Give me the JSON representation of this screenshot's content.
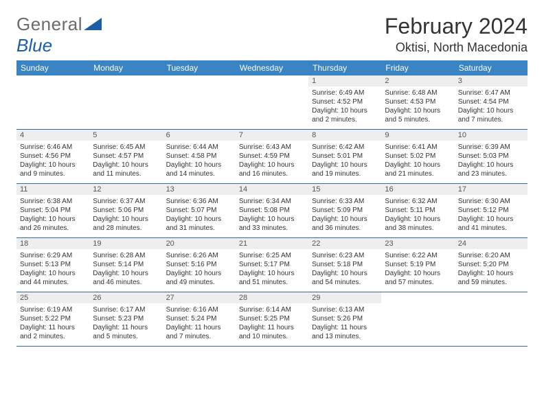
{
  "brand": {
    "name": "General",
    "accent": "Blue"
  },
  "title": "February 2024",
  "location": "Oktisi, North Macedonia",
  "style": {
    "header_bg": "#3a84c4",
    "header_fg": "#ffffff",
    "row_border": "#2f6aa0",
    "daynum_bg": "#eeeeee",
    "daynum_fg": "#555555",
    "body_fg": "#333333",
    "page_bg": "#ffffff",
    "logo_gray": "#6b6b6b",
    "logo_blue": "#1a5ea8",
    "title_fontsize": 32,
    "location_fontsize": 18,
    "header_fontsize": 12,
    "daynum_fontsize": 11,
    "cell_fontsize": 10
  },
  "weekdays": [
    "Sunday",
    "Monday",
    "Tuesday",
    "Wednesday",
    "Thursday",
    "Friday",
    "Saturday"
  ],
  "weeks": [
    [
      null,
      null,
      null,
      null,
      {
        "n": "1",
        "sr": "Sunrise: 6:49 AM",
        "ss": "Sunset: 4:52 PM",
        "dl": "Daylight: 10 hours and 2 minutes."
      },
      {
        "n": "2",
        "sr": "Sunrise: 6:48 AM",
        "ss": "Sunset: 4:53 PM",
        "dl": "Daylight: 10 hours and 5 minutes."
      },
      {
        "n": "3",
        "sr": "Sunrise: 6:47 AM",
        "ss": "Sunset: 4:54 PM",
        "dl": "Daylight: 10 hours and 7 minutes."
      }
    ],
    [
      {
        "n": "4",
        "sr": "Sunrise: 6:46 AM",
        "ss": "Sunset: 4:56 PM",
        "dl": "Daylight: 10 hours and 9 minutes."
      },
      {
        "n": "5",
        "sr": "Sunrise: 6:45 AM",
        "ss": "Sunset: 4:57 PM",
        "dl": "Daylight: 10 hours and 11 minutes."
      },
      {
        "n": "6",
        "sr": "Sunrise: 6:44 AM",
        "ss": "Sunset: 4:58 PM",
        "dl": "Daylight: 10 hours and 14 minutes."
      },
      {
        "n": "7",
        "sr": "Sunrise: 6:43 AM",
        "ss": "Sunset: 4:59 PM",
        "dl": "Daylight: 10 hours and 16 minutes."
      },
      {
        "n": "8",
        "sr": "Sunrise: 6:42 AM",
        "ss": "Sunset: 5:01 PM",
        "dl": "Daylight: 10 hours and 19 minutes."
      },
      {
        "n": "9",
        "sr": "Sunrise: 6:41 AM",
        "ss": "Sunset: 5:02 PM",
        "dl": "Daylight: 10 hours and 21 minutes."
      },
      {
        "n": "10",
        "sr": "Sunrise: 6:39 AM",
        "ss": "Sunset: 5:03 PM",
        "dl": "Daylight: 10 hours and 23 minutes."
      }
    ],
    [
      {
        "n": "11",
        "sr": "Sunrise: 6:38 AM",
        "ss": "Sunset: 5:04 PM",
        "dl": "Daylight: 10 hours and 26 minutes."
      },
      {
        "n": "12",
        "sr": "Sunrise: 6:37 AM",
        "ss": "Sunset: 5:06 PM",
        "dl": "Daylight: 10 hours and 28 minutes."
      },
      {
        "n": "13",
        "sr": "Sunrise: 6:36 AM",
        "ss": "Sunset: 5:07 PM",
        "dl": "Daylight: 10 hours and 31 minutes."
      },
      {
        "n": "14",
        "sr": "Sunrise: 6:34 AM",
        "ss": "Sunset: 5:08 PM",
        "dl": "Daylight: 10 hours and 33 minutes."
      },
      {
        "n": "15",
        "sr": "Sunrise: 6:33 AM",
        "ss": "Sunset: 5:09 PM",
        "dl": "Daylight: 10 hours and 36 minutes."
      },
      {
        "n": "16",
        "sr": "Sunrise: 6:32 AM",
        "ss": "Sunset: 5:11 PM",
        "dl": "Daylight: 10 hours and 38 minutes."
      },
      {
        "n": "17",
        "sr": "Sunrise: 6:30 AM",
        "ss": "Sunset: 5:12 PM",
        "dl": "Daylight: 10 hours and 41 minutes."
      }
    ],
    [
      {
        "n": "18",
        "sr": "Sunrise: 6:29 AM",
        "ss": "Sunset: 5:13 PM",
        "dl": "Daylight: 10 hours and 44 minutes."
      },
      {
        "n": "19",
        "sr": "Sunrise: 6:28 AM",
        "ss": "Sunset: 5:14 PM",
        "dl": "Daylight: 10 hours and 46 minutes."
      },
      {
        "n": "20",
        "sr": "Sunrise: 6:26 AM",
        "ss": "Sunset: 5:16 PM",
        "dl": "Daylight: 10 hours and 49 minutes."
      },
      {
        "n": "21",
        "sr": "Sunrise: 6:25 AM",
        "ss": "Sunset: 5:17 PM",
        "dl": "Daylight: 10 hours and 51 minutes."
      },
      {
        "n": "22",
        "sr": "Sunrise: 6:23 AM",
        "ss": "Sunset: 5:18 PM",
        "dl": "Daylight: 10 hours and 54 minutes."
      },
      {
        "n": "23",
        "sr": "Sunrise: 6:22 AM",
        "ss": "Sunset: 5:19 PM",
        "dl": "Daylight: 10 hours and 57 minutes."
      },
      {
        "n": "24",
        "sr": "Sunrise: 6:20 AM",
        "ss": "Sunset: 5:20 PM",
        "dl": "Daylight: 10 hours and 59 minutes."
      }
    ],
    [
      {
        "n": "25",
        "sr": "Sunrise: 6:19 AM",
        "ss": "Sunset: 5:22 PM",
        "dl": "Daylight: 11 hours and 2 minutes."
      },
      {
        "n": "26",
        "sr": "Sunrise: 6:17 AM",
        "ss": "Sunset: 5:23 PM",
        "dl": "Daylight: 11 hours and 5 minutes."
      },
      {
        "n": "27",
        "sr": "Sunrise: 6:16 AM",
        "ss": "Sunset: 5:24 PM",
        "dl": "Daylight: 11 hours and 7 minutes."
      },
      {
        "n": "28",
        "sr": "Sunrise: 6:14 AM",
        "ss": "Sunset: 5:25 PM",
        "dl": "Daylight: 11 hours and 10 minutes."
      },
      {
        "n": "29",
        "sr": "Sunrise: 6:13 AM",
        "ss": "Sunset: 5:26 PM",
        "dl": "Daylight: 11 hours and 13 minutes."
      },
      null,
      null
    ]
  ]
}
